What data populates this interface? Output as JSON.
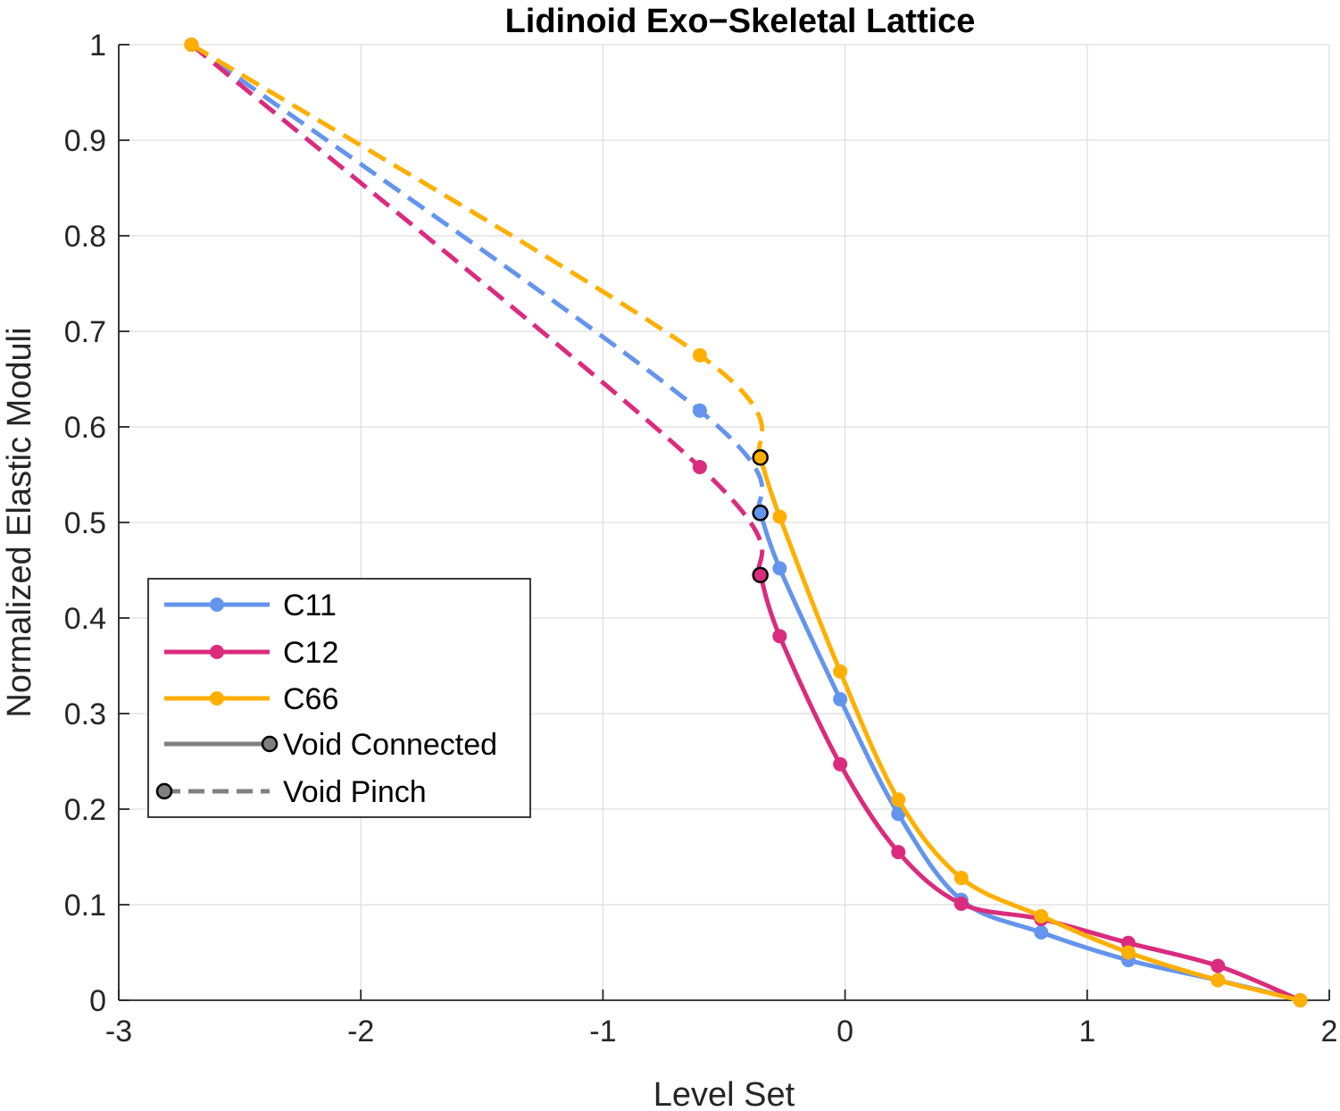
{
  "chart_data": {
    "type": "line",
    "title": "Lidinoid Exo−Skeletal Lattice",
    "xlabel": "Level Set",
    "ylabel": "Normalized Elastic Moduli",
    "xlim": [
      -3,
      2
    ],
    "ylim": [
      0,
      1
    ],
    "xticks": [
      -3,
      -2,
      -1,
      0,
      1,
      2
    ],
    "xtick_labels": [
      "-3",
      "-2",
      "-1",
      "0",
      "1",
      "2"
    ],
    "yticks": [
      0,
      0.1,
      0.2,
      0.3,
      0.4,
      0.5,
      0.6,
      0.7,
      0.8,
      0.9,
      1
    ],
    "ytick_labels": [
      "0",
      "0.1",
      "0.2",
      "0.3",
      "0.4",
      "0.5",
      "0.6",
      "0.7",
      "0.8",
      "0.9",
      "1"
    ],
    "grid": true,
    "legend_position": "lower-left",
    "series": [
      {
        "name": "C11",
        "color": "#6495ED",
        "pinch_x": [
          -2.7,
          -0.6,
          -0.35
        ],
        "pinch_y": [
          1.0,
          0.617,
          0.51
        ],
        "connected_x": [
          -0.35,
          -0.27,
          -0.02,
          0.22,
          0.48,
          0.81,
          1.17,
          1.54,
          1.88
        ],
        "connected_y": [
          0.51,
          0.452,
          0.315,
          0.195,
          0.105,
          0.071,
          0.042,
          0.021,
          0.0
        ]
      },
      {
        "name": "C12",
        "color": "#DB2B7E",
        "pinch_x": [
          -2.7,
          -0.6,
          -0.35
        ],
        "pinch_y": [
          1.0,
          0.558,
          0.445
        ],
        "connected_x": [
          -0.35,
          -0.27,
          -0.02,
          0.22,
          0.48,
          0.81,
          1.17,
          1.54,
          1.88
        ],
        "connected_y": [
          0.445,
          0.381,
          0.247,
          0.155,
          0.101,
          0.085,
          0.06,
          0.036,
          0.0
        ]
      },
      {
        "name": "C66",
        "color": "#FFAF00",
        "pinch_x": [
          -2.7,
          -0.6,
          -0.35
        ],
        "pinch_y": [
          1.0,
          0.675,
          0.568
        ],
        "connected_x": [
          -0.35,
          -0.27,
          -0.02,
          0.22,
          0.48,
          0.81,
          1.17,
          1.54,
          1.88
        ],
        "connected_y": [
          0.568,
          0.506,
          0.344,
          0.21,
          0.128,
          0.088,
          0.05,
          0.021,
          0.0
        ]
      }
    ],
    "legend": {
      "entries": [
        "C11",
        "C12",
        "C66",
        "Void Connected",
        "Void Pinch"
      ],
      "style_color": "#808080"
    }
  }
}
